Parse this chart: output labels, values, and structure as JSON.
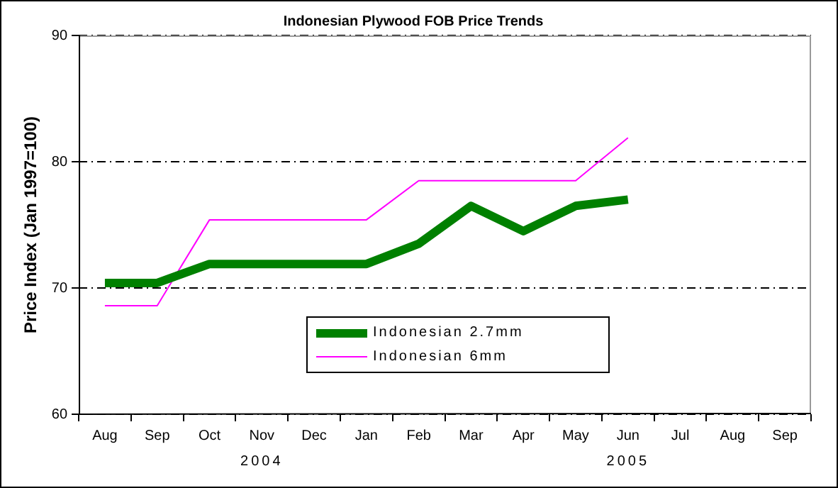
{
  "chart_data": {
    "type": "line",
    "title": "Indonesian Plywood FOB Price Trends",
    "ylabel": "Price Index (Jan 1997=100)",
    "categories": [
      "Aug",
      "Sep",
      "Oct",
      "Nov",
      "Dec",
      "Jan",
      "Feb",
      "Mar",
      "Apr",
      "May",
      "Jun",
      "Jul",
      "Aug",
      "Sep"
    ],
    "series": [
      {
        "name": "Indonesian 2.7mm",
        "color": "#008000",
        "values": [
          70.4,
          70.4,
          71.9,
          71.9,
          71.9,
          71.9,
          73.5,
          76.5,
          74.5,
          76.5,
          77.0,
          null,
          null,
          null
        ]
      },
      {
        "name": "Indonesian 6mm",
        "color": "#ff00ff",
        "values": [
          68.6,
          68.6,
          75.4,
          75.4,
          75.4,
          75.4,
          78.5,
          78.5,
          78.5,
          78.5,
          81.9,
          null,
          null,
          null
        ]
      }
    ],
    "ylim": [
      60,
      90
    ],
    "yticks": [
      60,
      70,
      80,
      90
    ],
    "grid": "y",
    "legend": "bottom",
    "marker": "none",
    "line_style": "solid",
    "annotations": [
      "2004",
      "2005"
    ]
  }
}
